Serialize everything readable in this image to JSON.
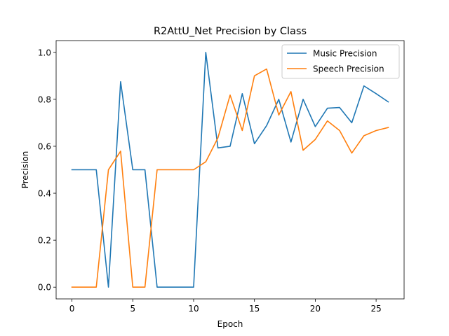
{
  "chart_data": {
    "type": "line",
    "title": "R2AttU_Net Precision by Class",
    "xlabel": "Epoch",
    "ylabel": "Precision",
    "xlim": [
      -1.3,
      27.3
    ],
    "ylim": [
      -0.05,
      1.05
    ],
    "xticks": [
      0,
      5,
      10,
      15,
      20,
      25
    ],
    "yticks": [
      0.0,
      0.2,
      0.4,
      0.6,
      0.8,
      1.0
    ],
    "xtick_labels": [
      "0",
      "5",
      "10",
      "15",
      "20",
      "25"
    ],
    "ytick_labels": [
      "0.0",
      "0.2",
      "0.4",
      "0.6",
      "0.8",
      "1.0"
    ],
    "grid": false,
    "legend_position": "top-right",
    "x": [
      0,
      1,
      2,
      3,
      4,
      5,
      6,
      7,
      8,
      9,
      10,
      11,
      12,
      13,
      14,
      15,
      16,
      17,
      18,
      19,
      20,
      21,
      22,
      23,
      24,
      25,
      26
    ],
    "series": [
      {
        "name": "Music Precision",
        "color": "#1f77b4",
        "values": [
          0.5,
          0.5,
          0.5,
          0.0,
          0.875,
          0.5,
          0.5,
          0.0,
          0.0,
          0.0,
          0.0,
          1.0,
          0.593,
          0.6,
          0.824,
          0.611,
          0.688,
          0.8,
          0.618,
          0.8,
          0.684,
          0.762,
          0.765,
          0.7,
          0.857,
          0.824,
          0.789
        ]
      },
      {
        "name": "Speech Precision",
        "color": "#ff7f0e",
        "values": [
          0.0,
          0.0,
          0.0,
          0.5,
          0.579,
          0.0,
          0.0,
          0.5,
          0.5,
          0.5,
          0.5,
          0.534,
          0.636,
          0.818,
          0.667,
          0.9,
          0.929,
          0.733,
          0.833,
          0.583,
          0.629,
          0.708,
          0.667,
          0.571,
          0.645,
          0.667,
          0.68
        ]
      }
    ]
  }
}
